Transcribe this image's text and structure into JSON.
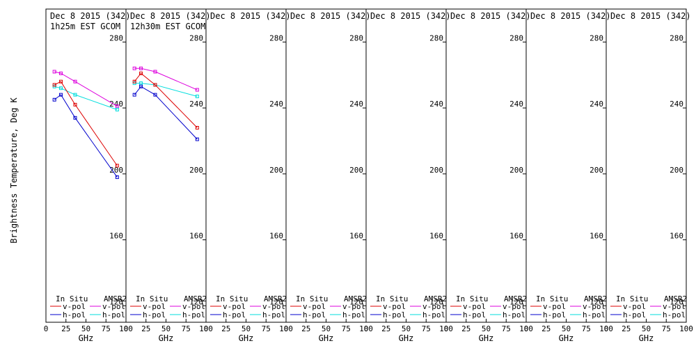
{
  "chart_data": {
    "type": "line",
    "ylabel": "Brightness Temperature, Deg K",
    "xlabel": "GHz",
    "xlim": [
      0,
      100
    ],
    "ylim": [
      110,
      300
    ],
    "x_ticks": [
      0,
      25,
      50,
      75,
      100
    ],
    "x_tick_labels": [
      "0",
      "25",
      "50",
      "75",
      "100"
    ],
    "y_ticks": [
      120,
      160,
      200,
      240,
      280
    ],
    "y_tick_labels": [
      "120",
      "160",
      "200",
      "240",
      "280"
    ],
    "colors": {
      "insitu_v": "#dd0000",
      "insitu_h": "#0000cc",
      "amsr2_v": "#dd00dd",
      "amsr2_h": "#00dddd"
    },
    "legend": {
      "in_situ": "In Situ",
      "amsr2": "AMSR2",
      "v_pol": "v-pol",
      "h_pol": "h-pol"
    },
    "panels": [
      {
        "date": "Dec 8 2015 (342)",
        "subtitle": "1h25m EST GCOM",
        "series": [
          {
            "key": "amsr2_v",
            "x": [
              10.6,
              18.7,
              36.5,
              89.0
            ],
            "y": [
              262,
              261,
              256,
              241
            ]
          },
          {
            "key": "amsr2_h",
            "x": [
              10.6,
              18.7,
              36.5,
              89.0
            ],
            "y": [
              253,
              252,
              248,
              239
            ]
          },
          {
            "key": "insitu_v",
            "x": [
              10.6,
              18.7,
              36.5,
              89.0
            ],
            "y": [
              254,
              256,
              242,
              205
            ]
          },
          {
            "key": "insitu_h",
            "x": [
              10.6,
              18.7,
              36.5,
              89.0
            ],
            "y": [
              245,
              248,
              234,
              198
            ]
          }
        ]
      },
      {
        "date": "Dec 8 2015 (342)",
        "subtitle": "12h30m EST GCOM",
        "series": [
          {
            "key": "amsr2_v",
            "x": [
              10.6,
              18.7,
              36.5,
              89.0
            ],
            "y": [
              264,
              264,
              262,
              251
            ]
          },
          {
            "key": "amsr2_h",
            "x": [
              10.6,
              18.7,
              36.5,
              89.0
            ],
            "y": [
              255,
              255,
              254,
              247
            ]
          },
          {
            "key": "insitu_v",
            "x": [
              10.6,
              18.7,
              36.5,
              89.0
            ],
            "y": [
              256,
              261,
              254,
              228
            ]
          },
          {
            "key": "insitu_h",
            "x": [
              10.6,
              18.7,
              36.5,
              89.0
            ],
            "y": [
              248,
              253,
              248,
              221
            ]
          }
        ]
      },
      {
        "date": "Dec 8 2015 (342)",
        "subtitle": "",
        "series": []
      },
      {
        "date": "Dec 8 2015 (342)",
        "subtitle": "",
        "series": []
      },
      {
        "date": "Dec 8 2015 (342)",
        "subtitle": "",
        "series": []
      },
      {
        "date": "Dec 8 2015 (342)",
        "subtitle": "",
        "series": []
      },
      {
        "date": "Dec 8 2015 (342)",
        "subtitle": "",
        "series": []
      },
      {
        "date": "Dec 8 2015 (342)",
        "subtitle": "",
        "series": []
      }
    ]
  }
}
